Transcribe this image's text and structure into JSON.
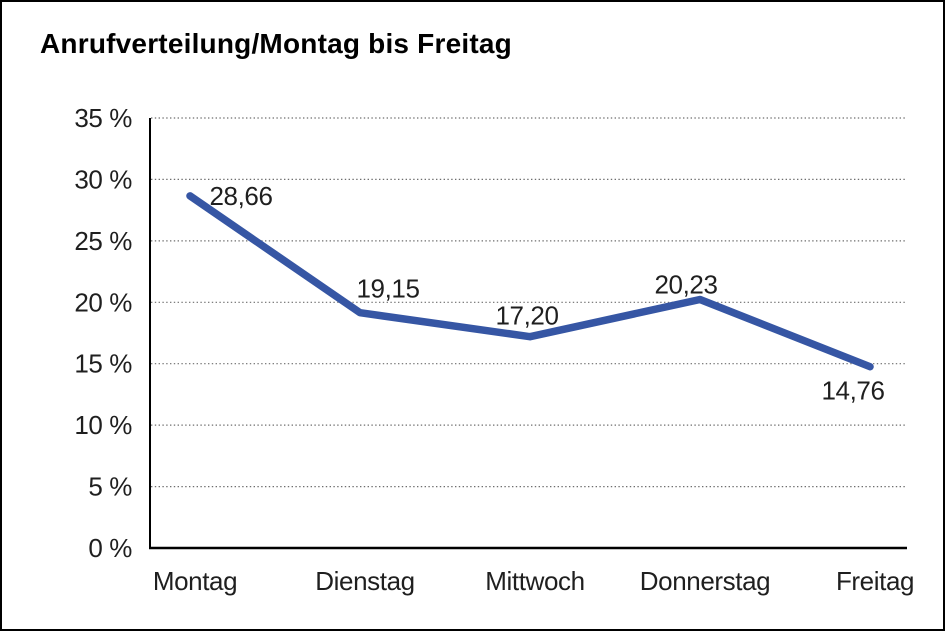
{
  "chart_data": {
    "type": "line",
    "title": "Anrufverteilung/Montag bis Freitag",
    "categories": [
      "Montag",
      "Dienstag",
      "Mittwoch",
      "Donnerstag",
      "Freitag"
    ],
    "values": [
      28.66,
      19.15,
      17.2,
      20.23,
      14.76
    ],
    "value_labels": [
      "28,66",
      "19,15",
      "17,20",
      "20,23",
      "14,76"
    ],
    "xlabel": "",
    "ylabel": "",
    "ylim": [
      0,
      35
    ],
    "ytick_step": 5,
    "ytick_labels": [
      "0 %",
      "5 %",
      "10 %",
      "15 %",
      "20 %",
      "25 %",
      "30 %",
      "35 %"
    ],
    "grid": "horizontal-dotted",
    "legend": "none",
    "colors": {
      "line": "#3656a4",
      "axis": "#000000",
      "grid": "#6e6e6e",
      "text": "#1f1f1f",
      "background": "#ffffff",
      "border": "#000000"
    }
  }
}
